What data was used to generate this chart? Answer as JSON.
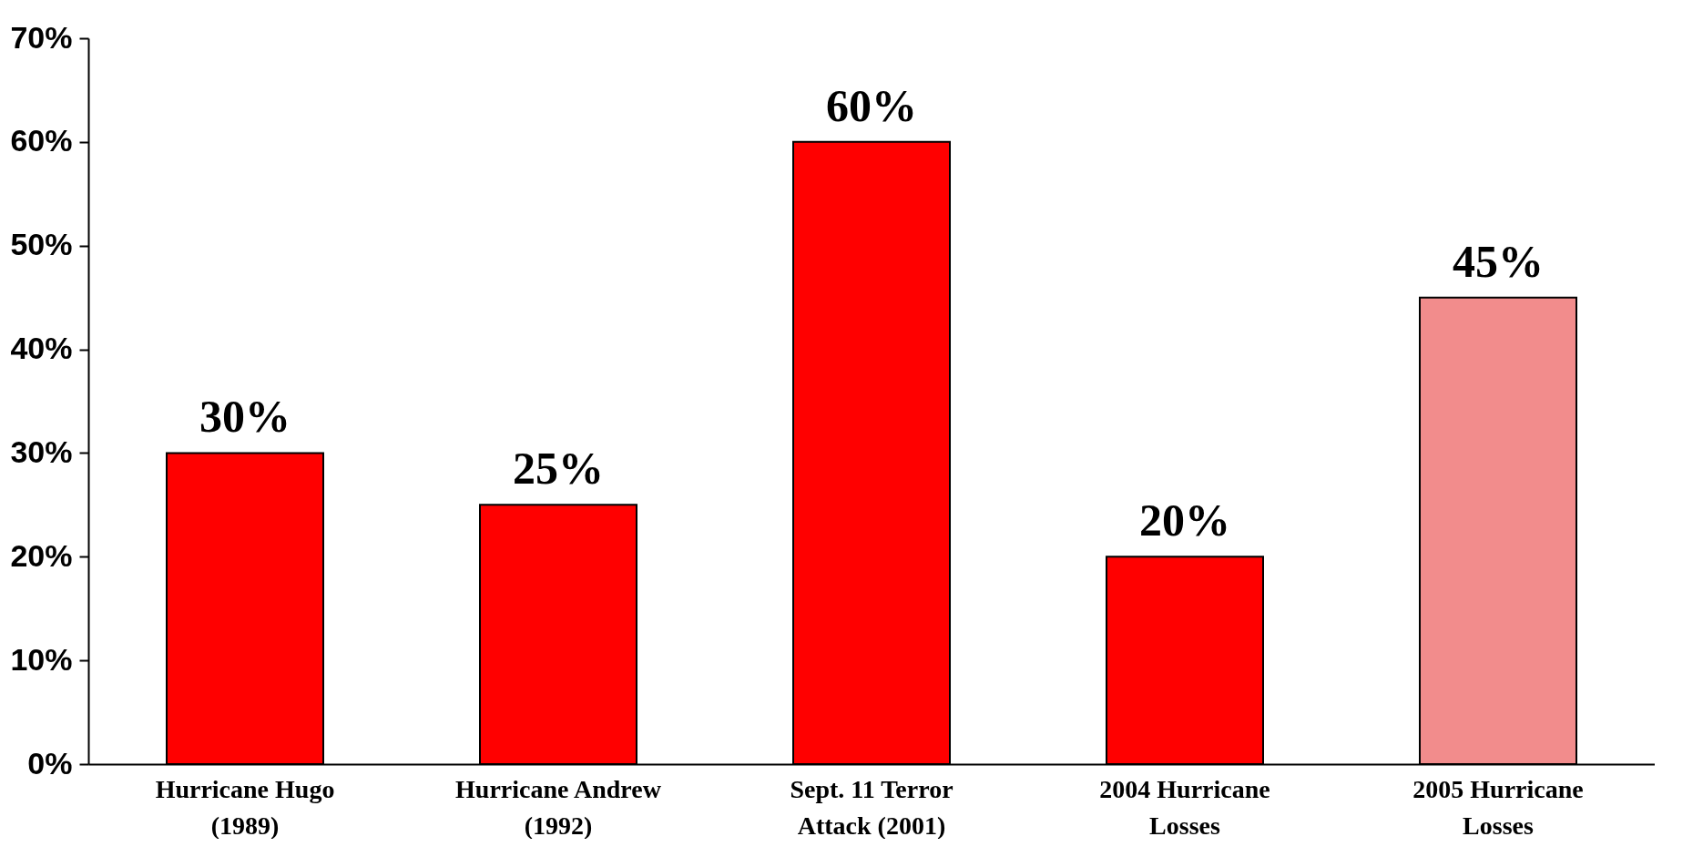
{
  "chart_data": {
    "type": "bar",
    "categories": [
      "Hurricane Hugo (1989)",
      "Hurricane Andrew (1992)",
      "Sept. 11 Terror Attack (2001)",
      "2004 Hurricane Losses",
      "2005 Hurricane Losses"
    ],
    "values": [
      30,
      25,
      60,
      20,
      45
    ],
    "colors": [
      "#ff0000",
      "#ff0000",
      "#ff0000",
      "#ff0000",
      "#f28c8c"
    ],
    "value_labels": [
      "30%",
      "25%",
      "60%",
      "20%",
      "45%"
    ],
    "ylim": [
      0,
      70
    ],
    "yticks": [
      {
        "value": 0,
        "label": "0%"
      },
      {
        "value": 10,
        "label": "10%"
      },
      {
        "value": 20,
        "label": "20%"
      },
      {
        "value": 30,
        "label": "30%"
      },
      {
        "value": 40,
        "label": "40%"
      },
      {
        "value": 50,
        "label": "50%"
      },
      {
        "value": 60,
        "label": "60%"
      },
      {
        "value": 70,
        "label": "70%"
      }
    ],
    "grid": false
  }
}
